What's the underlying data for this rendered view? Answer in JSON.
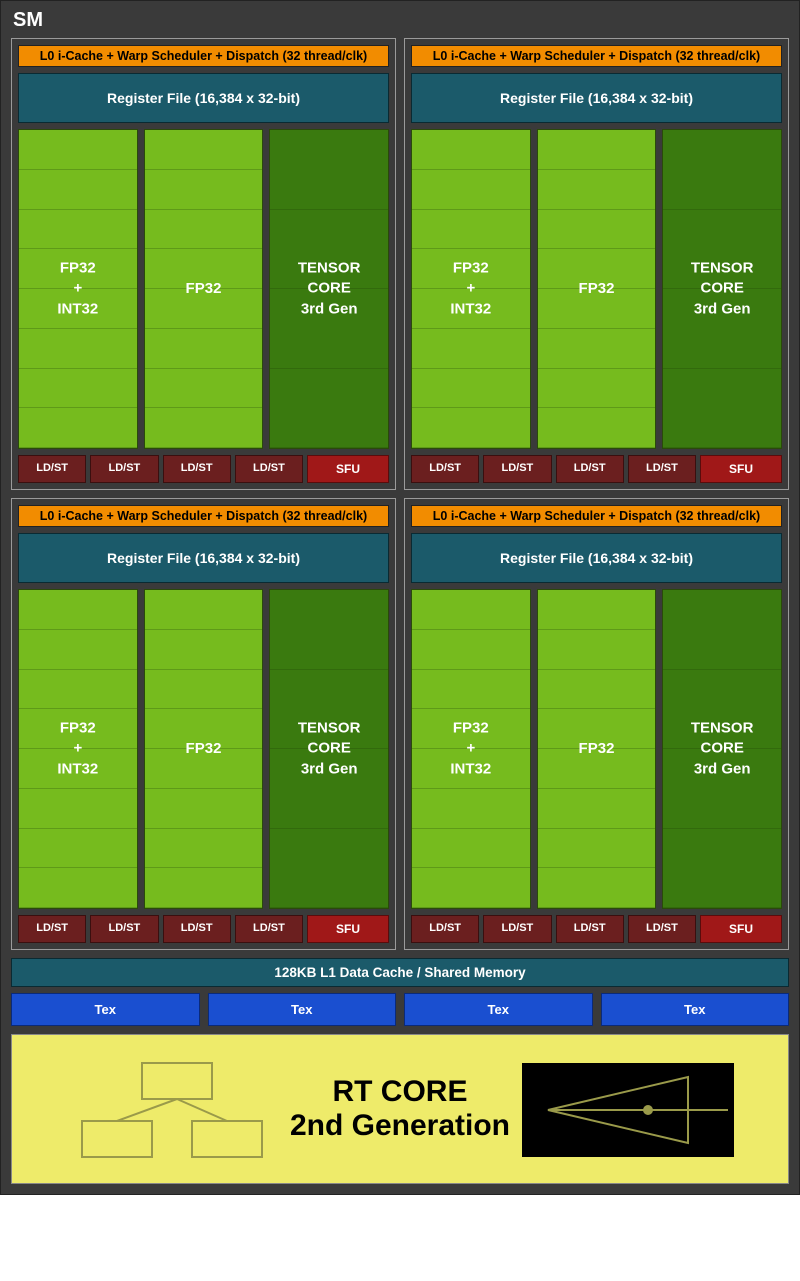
{
  "colors": {
    "background": "#3a3a3a",
    "partitionBorder": "#9a9a9a",
    "dispatch": "#f28c00",
    "regfile": "#1b5a6a",
    "coreLight": "#76bb1e",
    "coreDark": "#3a7a0f",
    "ldst": "#6b1f1f",
    "sfu": "#a01818",
    "tex": "#1a4fd0",
    "rt": "#eeeb6a",
    "textWhite": "#ffffff",
    "textBlack": "#000000"
  },
  "sm": {
    "title": "SM",
    "partition": {
      "dispatch": "L0 i-Cache + Warp Scheduler + Dispatch (32 thread/clk)",
      "regfile": "Register File (16,384 x 32-bit)",
      "cores": {
        "col0": "FP32\n+\nINT32",
        "col1": "FP32",
        "col2": "TENSOR CORE\n3rd Gen",
        "lightRows": 8,
        "darkRows": 4
      },
      "ldst": "LD/ST",
      "ldstCount": 4,
      "sfu": "SFU"
    },
    "partitionCount": 4,
    "l1": "128KB L1 Data Cache / Shared Memory",
    "tex": "Tex",
    "texCount": 4,
    "rt": {
      "line1": "RT CORE",
      "line2": "2nd Generation"
    }
  }
}
